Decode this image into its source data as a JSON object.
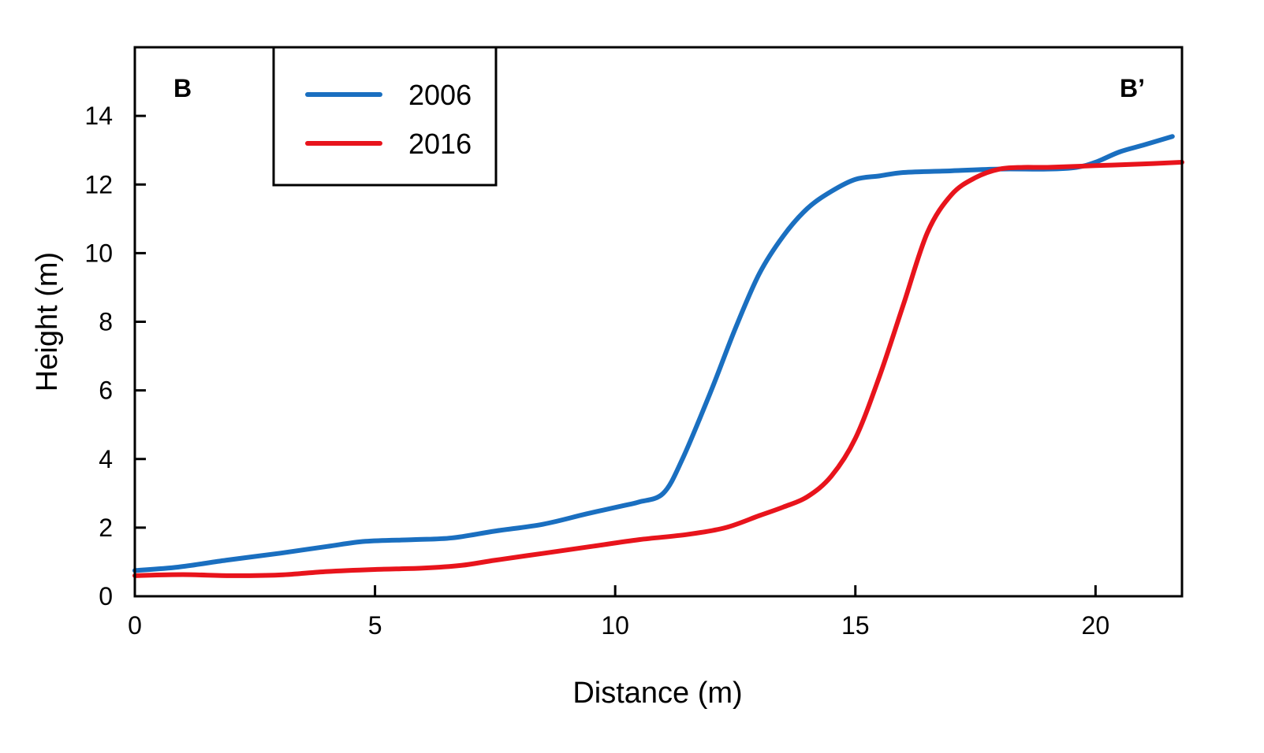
{
  "chart_data": {
    "type": "line",
    "xlabel": "Distance (m)",
    "ylabel": "Height (m)",
    "xlim": [
      0,
      21.8
    ],
    "ylim": [
      0,
      16
    ],
    "xticks": [
      0,
      5,
      10,
      15,
      20
    ],
    "yticks": [
      0,
      2,
      4,
      6,
      8,
      10,
      12,
      14
    ],
    "grid": false,
    "legend_position": "top-left",
    "annotations": {
      "left": "B",
      "right": "B’"
    },
    "series": [
      {
        "name": "2006",
        "color": "#1a6fc0",
        "x": [
          0,
          0.9,
          1.9,
          3.0,
          4.0,
          4.8,
          5.8,
          6.6,
          7.5,
          8.5,
          9.4,
          10.2,
          10.5,
          11.0,
          11.4,
          12.0,
          12.5,
          13.0,
          13.5,
          14.0,
          14.5,
          15.0,
          15.5,
          16.0,
          17.0,
          18.0,
          19.0,
          19.6,
          20.0,
          20.5,
          21.0,
          21.6
        ],
        "y": [
          0.75,
          0.85,
          1.05,
          1.25,
          1.45,
          1.6,
          1.65,
          1.7,
          1.9,
          2.1,
          2.4,
          2.65,
          2.75,
          3.0,
          4.0,
          6.0,
          7.8,
          9.4,
          10.5,
          11.3,
          11.8,
          12.15,
          12.25,
          12.35,
          12.4,
          12.45,
          12.45,
          12.5,
          12.65,
          12.95,
          13.15,
          13.4
        ]
      },
      {
        "name": "2016",
        "color": "#e8141c",
        "x": [
          0,
          1.0,
          2.0,
          3.0,
          4.0,
          5.0,
          6.0,
          6.8,
          7.5,
          8.5,
          9.5,
          10.5,
          11.5,
          12.3,
          13.0,
          13.5,
          14.0,
          14.5,
          15.0,
          15.5,
          16.0,
          16.5,
          17.0,
          17.5,
          18.0,
          18.5,
          19.0,
          20.0,
          21.0,
          21.8
        ],
        "y": [
          0.6,
          0.63,
          0.6,
          0.62,
          0.72,
          0.78,
          0.82,
          0.9,
          1.05,
          1.25,
          1.45,
          1.65,
          1.8,
          2.0,
          2.35,
          2.6,
          2.9,
          3.5,
          4.6,
          6.4,
          8.5,
          10.6,
          11.7,
          12.2,
          12.45,
          12.5,
          12.5,
          12.55,
          12.6,
          12.65
        ]
      }
    ]
  }
}
